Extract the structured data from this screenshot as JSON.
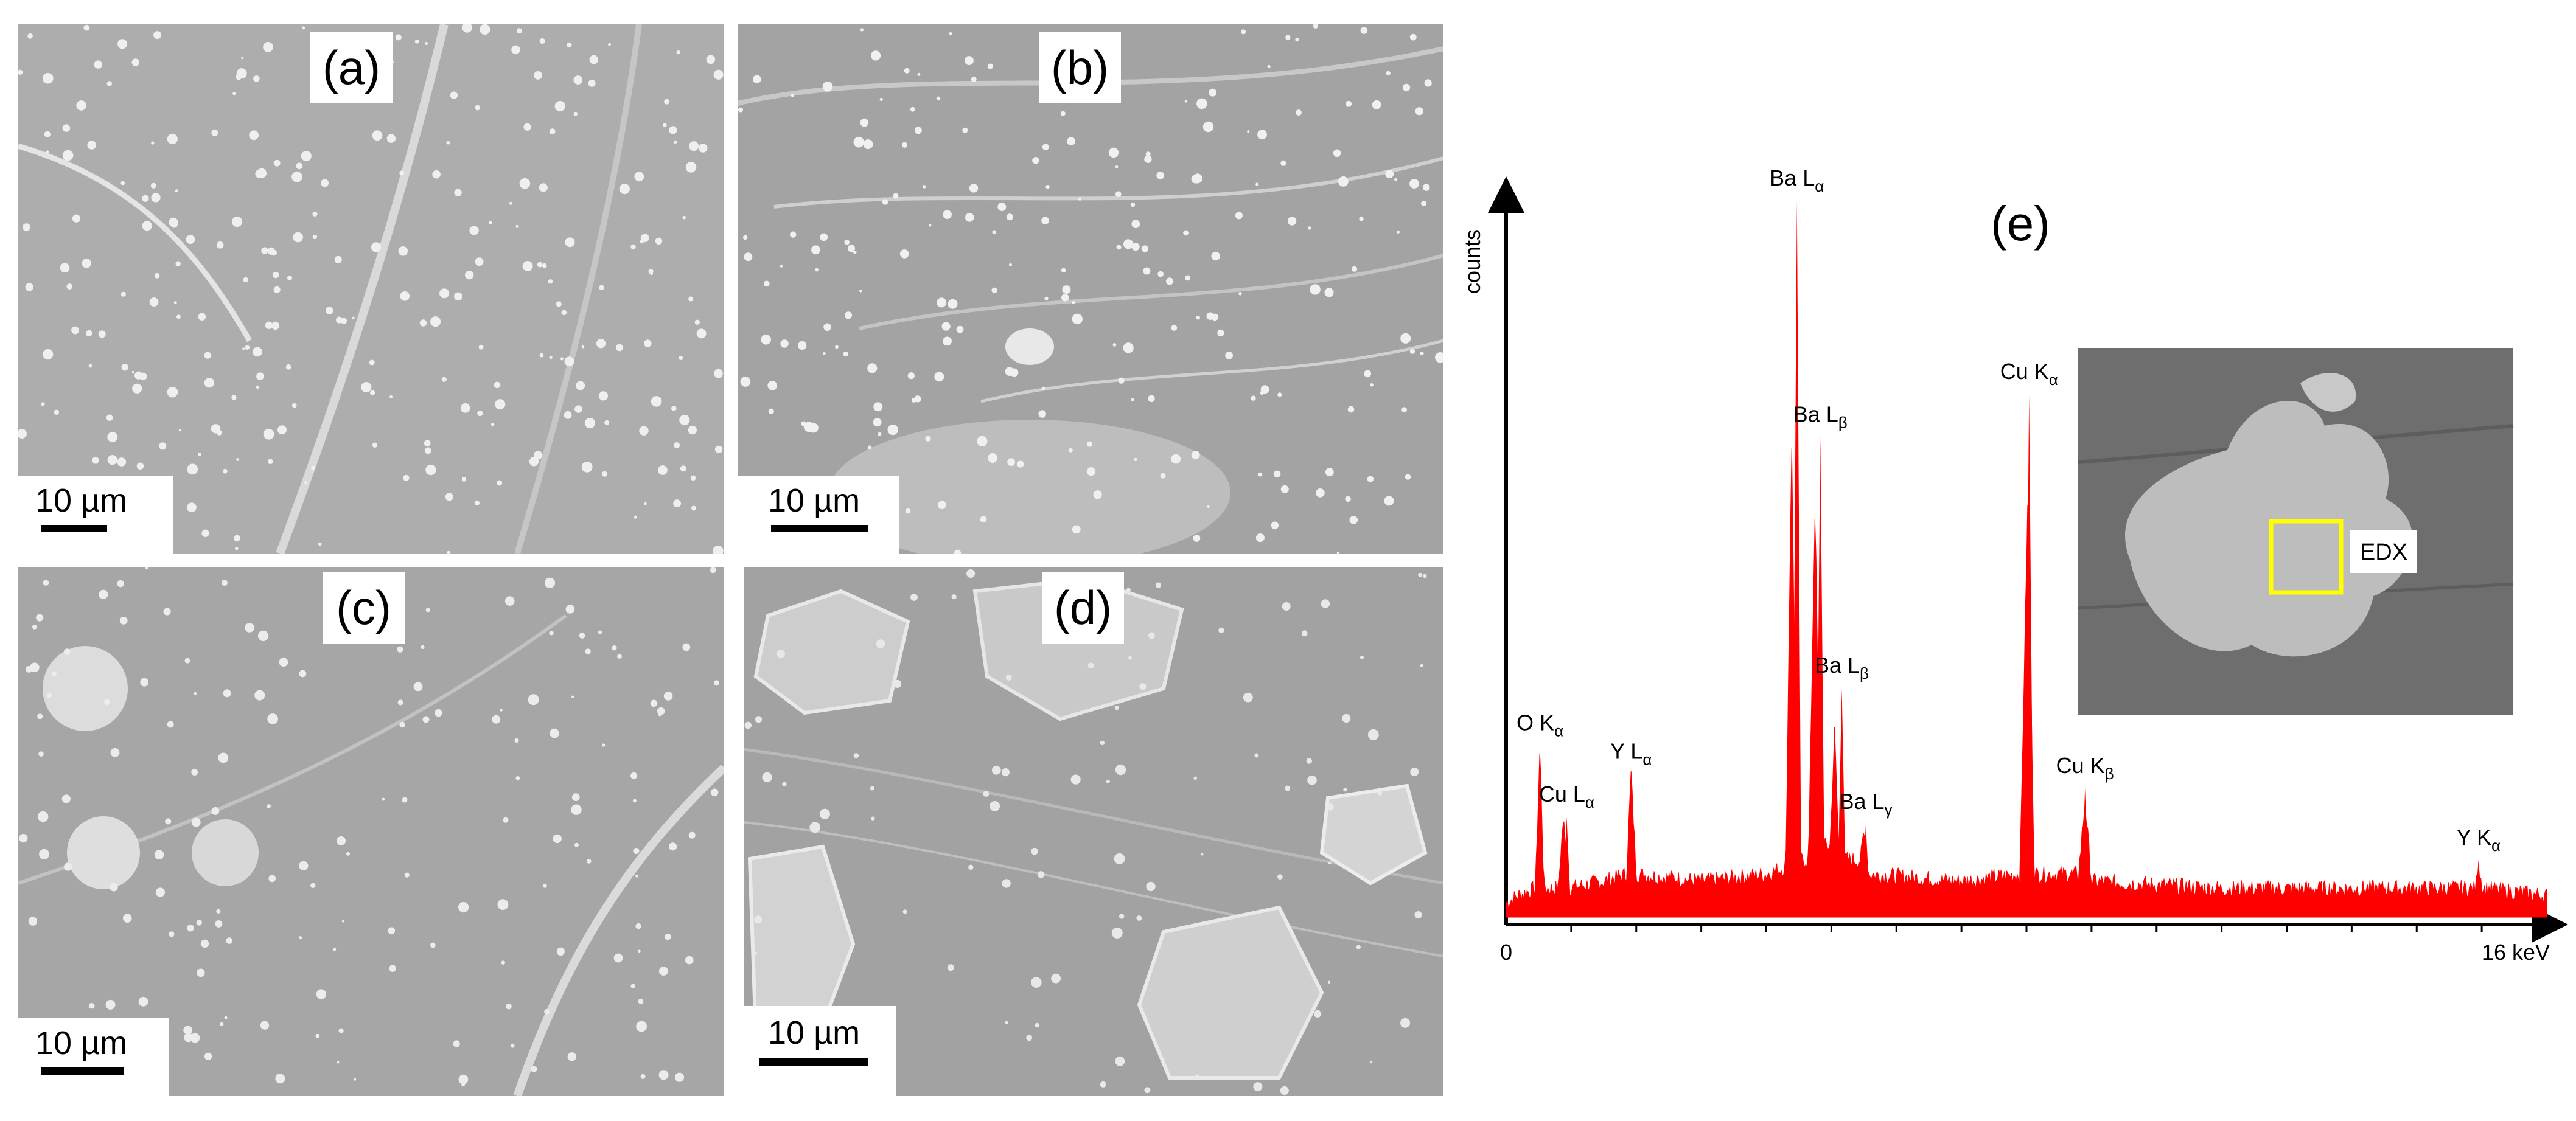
{
  "panels": [
    {
      "id": "a",
      "label": "(a)",
      "scale_label": "10 µm"
    },
    {
      "id": "b",
      "label": "(b)",
      "scale_label": "10 µm"
    },
    {
      "id": "c",
      "label": "(c)",
      "scale_label": "10 µm"
    },
    {
      "id": "d",
      "label": "(d)",
      "scale_label": "10 µm"
    }
  ],
  "chart_data": {
    "type": "line",
    "title": "(e)",
    "xlabel": "",
    "ylabel": "counts",
    "x_unit": "keV",
    "x_tick_labels": [
      "0",
      "16 keV"
    ],
    "xlim": [
      0,
      16
    ],
    "ylim": [
      0,
      100
    ],
    "grid": false,
    "color": "#ff0000",
    "series": [
      {
        "values": [
          [
            0.0,
            2
          ],
          [
            0.18,
            3
          ],
          [
            0.45,
            4
          ],
          [
            0.52,
            24
          ],
          [
            0.58,
            4
          ],
          [
            0.8,
            4
          ],
          [
            0.88,
            14
          ],
          [
            0.95,
            4
          ],
          [
            1.5,
            5
          ],
          [
            1.85,
            6
          ],
          [
            1.92,
            20
          ],
          [
            2.0,
            6
          ],
          [
            3.0,
            5
          ],
          [
            4.0,
            6
          ],
          [
            4.3,
            7
          ],
          [
            4.39,
            67
          ],
          [
            4.47,
            8
          ],
          [
            4.65,
            8
          ],
          [
            4.75,
            58
          ],
          [
            4.83,
            10
          ],
          [
            4.98,
            10
          ],
          [
            5.05,
            26
          ],
          [
            5.12,
            8
          ],
          [
            5.45,
            8
          ],
          [
            5.5,
            12
          ],
          [
            5.58,
            6
          ],
          [
            7.0,
            5
          ],
          [
            7.9,
            6
          ],
          [
            8.02,
            58
          ],
          [
            8.12,
            6
          ],
          [
            8.8,
            6
          ],
          [
            8.9,
            16
          ],
          [
            9.0,
            5
          ],
          [
            11.0,
            4
          ],
          [
            14.0,
            4
          ],
          [
            14.9,
            4
          ],
          [
            14.95,
            7
          ],
          [
            15.02,
            4
          ],
          [
            16.0,
            3
          ]
        ]
      }
    ],
    "peaks": [
      {
        "label": "O K",
        "sub": "α",
        "x": 0.52,
        "y": 24
      },
      {
        "label": "Cu L",
        "sub": "α",
        "x": 0.93,
        "y": 14
      },
      {
        "label": "Y L",
        "sub": "α",
        "x": 1.92,
        "y": 20
      },
      {
        "label": "Ba L",
        "sub": "α",
        "x": 4.47,
        "y": 100
      },
      {
        "label": "Ba L",
        "sub": "β",
        "x": 4.83,
        "y": 67
      },
      {
        "label": "Ba L",
        "sub": "β",
        "x": 5.16,
        "y": 32
      },
      {
        "label": "Ba L",
        "sub": "γ",
        "x": 5.53,
        "y": 13
      },
      {
        "label": "Cu K",
        "sub": "α",
        "x": 8.04,
        "y": 73
      },
      {
        "label": "Cu K",
        "sub": "β",
        "x": 8.9,
        "y": 18
      },
      {
        "label": "Y K",
        "sub": "α",
        "x": 14.95,
        "y": 8
      }
    ],
    "inset": {
      "label": "EDX",
      "box_color": "#ffff00"
    }
  }
}
